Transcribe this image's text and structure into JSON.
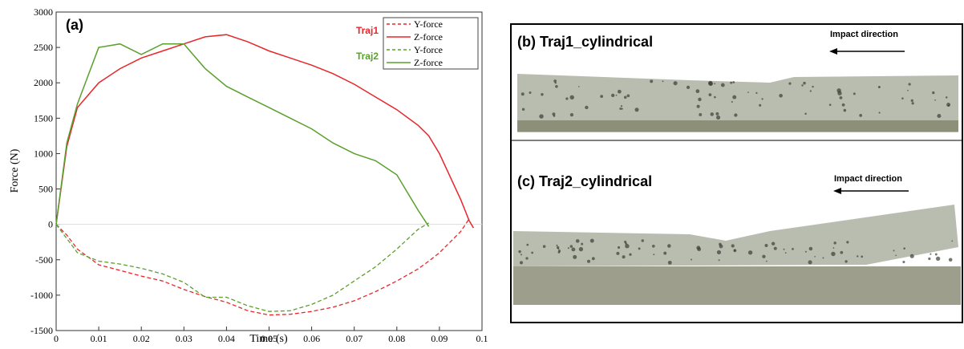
{
  "chart_data": {
    "type": "line",
    "label": "(a)",
    "x_label": "Time (s)",
    "y_label": "Force (N)",
    "x": [
      0,
      0.0025,
      0.005,
      0.01,
      0.015,
      0.02,
      0.025,
      0.03,
      0.035,
      0.04,
      0.045,
      0.05,
      0.055,
      0.06,
      0.065,
      0.07,
      0.075,
      0.08,
      0.085,
      0.0875,
      0.09,
      0.095,
      0.097,
      0.098
    ],
    "series": [
      {
        "name": "Y-force",
        "color": "#e8262a",
        "dashed": true,
        "values": [
          0,
          -150,
          -350,
          -570,
          -650,
          -730,
          -800,
          -920,
          -1020,
          -1100,
          -1220,
          -1280,
          -1270,
          -1230,
          -1170,
          -1080,
          -950,
          -800,
          -630,
          -520,
          -400,
          -100,
          80,
          null
        ]
      },
      {
        "name": "Z-force",
        "color": "#e8262a",
        "dashed": false,
        "values": [
          0,
          1100,
          1650,
          2000,
          2200,
          2350,
          2450,
          2550,
          2650,
          2680,
          2580,
          2450,
          2350,
          2250,
          2130,
          1980,
          1800,
          1620,
          1400,
          1250,
          1000,
          350,
          50,
          -50
        ]
      },
      {
        "name": "Y-force",
        "color": "#5aa02c",
        "dashed": true,
        "values": [
          0,
          -200,
          -400,
          -520,
          -560,
          -620,
          -700,
          -820,
          -1030,
          -1030,
          -1150,
          -1230,
          -1220,
          -1130,
          -1000,
          -800,
          -600,
          -350,
          -70,
          20,
          null,
          null,
          null,
          null
        ]
      },
      {
        "name": "Z-force",
        "color": "#5aa02c",
        "dashed": false,
        "values": [
          0,
          1150,
          1700,
          2500,
          2550,
          2400,
          2550,
          2550,
          2200,
          1950,
          1800,
          1650,
          1500,
          1350,
          1150,
          1000,
          900,
          700,
          200,
          -30,
          null,
          null,
          null,
          null
        ]
      }
    ],
    "legend_groups": [
      {
        "label": "Traj1",
        "color": "#e8262a"
      },
      {
        "label": "Traj2",
        "color": "#5aa02c"
      }
    ],
    "xlim": [
      0,
      0.1
    ],
    "ylim": [
      -1500,
      3000
    ],
    "xticks": [
      0,
      0.01,
      0.02,
      0.03,
      0.04,
      0.05,
      0.06,
      0.07,
      0.08,
      0.09,
      0.1
    ],
    "yticks": [
      -1500,
      -1000,
      -500,
      0,
      500,
      1000,
      1500,
      2000,
      2500,
      3000
    ]
  },
  "photos": [
    {
      "label": "(b) Traj1_cylindrical",
      "arrow_label": "Impact direction"
    },
    {
      "label": "(c) Traj2_cylindrical",
      "arrow_label": "Impact direction"
    }
  ]
}
